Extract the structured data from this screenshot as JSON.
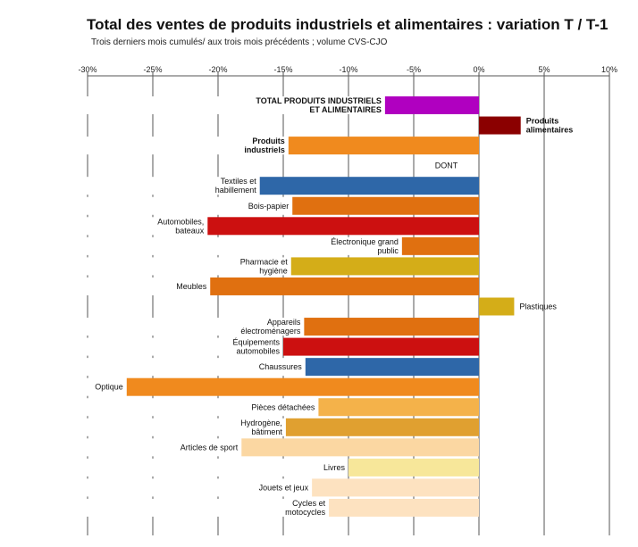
{
  "chart_data": {
    "type": "bar",
    "orientation": "horizontal",
    "title": "Total des ventes de produits industriels et alimentaires : variation T / T-1",
    "subtitle": "Trois derniers mois cumulés/ aux trois mois précédents ; volume CVS-CJO",
    "x_ticks": [
      "-30%",
      "-25%",
      "-20%",
      "-15%",
      "-10%",
      "-5%",
      "0%",
      "5%",
      "10%"
    ],
    "xlim": [
      -30,
      10
    ],
    "grid": true,
    "categories": [
      {
        "label": "TOTAL PRODUITS INDUSTRIELS ET ALIMENTAIRES",
        "value": -7.2,
        "color": "#b000c0",
        "bold": true,
        "labelSide": "left"
      },
      {
        "label": "Produits alimentaires",
        "value": 3.2,
        "color": "#8b0000",
        "bold": true,
        "labelSide": "right"
      },
      {
        "label": "Produits industriels",
        "value": -14.6,
        "color": "#f08a1e",
        "bold": true,
        "labelSide": "left"
      },
      {
        "label": "DONT",
        "value": null,
        "color": "",
        "bold": false,
        "labelSide": "center"
      },
      {
        "label": "Textiles et habillement",
        "value": -16.8,
        "color": "#2e67a8",
        "bold": false,
        "labelSide": "left"
      },
      {
        "label": "Bois-papier",
        "value": -14.3,
        "color": "#e07010",
        "bold": false,
        "labelSide": "left"
      },
      {
        "label": "Automobiles, bateaux",
        "value": -20.8,
        "color": "#cc1010",
        "bold": false,
        "labelSide": "left"
      },
      {
        "label": "Électronique grand public",
        "value": -5.9,
        "color": "#e07010",
        "bold": false,
        "labelSide": "left"
      },
      {
        "label": "Pharmacie et hygiène",
        "value": -14.4,
        "color": "#d4ad18",
        "bold": false,
        "labelSide": "left"
      },
      {
        "label": "Meubles",
        "value": -20.6,
        "color": "#e07010",
        "bold": false,
        "labelSide": "left"
      },
      {
        "label": "Plastiques",
        "value": 2.7,
        "color": "#d4ad18",
        "bold": false,
        "labelSide": "right"
      },
      {
        "label": "Appareils électroménagers",
        "value": -13.4,
        "color": "#e07010",
        "bold": false,
        "labelSide": "left"
      },
      {
        "label": "Équipements automobiles",
        "value": -15.0,
        "color": "#cc1010",
        "bold": false,
        "labelSide": "left"
      },
      {
        "label": "Chaussures",
        "value": -13.3,
        "color": "#2e67a8",
        "bold": false,
        "labelSide": "left"
      },
      {
        "label": "Optique",
        "value": -27.0,
        "color": "#f08a1e",
        "bold": false,
        "labelSide": "left"
      },
      {
        "label": "Pièces détachées",
        "value": -12.3,
        "color": "#f4b24a",
        "bold": false,
        "labelSide": "left"
      },
      {
        "label": "Hydrogène, bâtiment",
        "value": -14.8,
        "color": "#e0a030",
        "bold": false,
        "labelSide": "left"
      },
      {
        "label": "Articles de sport",
        "value": -18.2,
        "color": "#fbd7a2",
        "bold": false,
        "labelSide": "left"
      },
      {
        "label": "Livres",
        "value": -10.0,
        "color": "#f7e79a",
        "bold": false,
        "labelSide": "left"
      },
      {
        "label": "Jouets et jeux",
        "value": -12.8,
        "color": "#fde2c0",
        "bold": false,
        "labelSide": "left"
      },
      {
        "label": "Cycles et motocycles",
        "value": -11.5,
        "color": "#fde2c0",
        "bold": false,
        "labelSide": "left"
      }
    ]
  }
}
